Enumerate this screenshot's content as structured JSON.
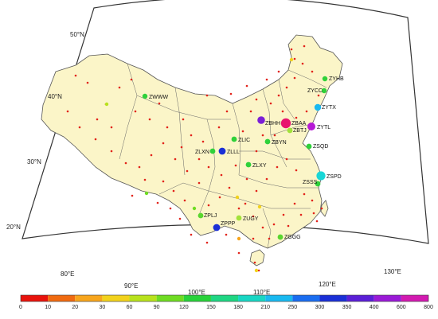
{
  "colors": {
    "land": "#fbf5c8",
    "border": "#555555",
    "frame": "#333333",
    "small_dot": "#e2231a"
  },
  "latitude_labels": [
    "50°N",
    "40°N",
    "30°N",
    "20°N"
  ],
  "longitude_labels": [
    "80°E",
    "90°E",
    "100°E",
    "110°E",
    "120°E",
    "130°E"
  ],
  "stations": [
    {
      "code": "ZWWW",
      "color": "#2fd13a"
    },
    {
      "code": "ZYHB",
      "color": "#2fd13a"
    },
    {
      "code": "ZYCC",
      "color": "#2fd13a"
    },
    {
      "code": "ZYTX",
      "color": "#19b9f0"
    },
    {
      "code": "ZBHH",
      "color": "#7b1fd6"
    },
    {
      "code": "ZBAA",
      "color": "#e8156e"
    },
    {
      "code": "ZBTJ",
      "color": "#a2e23a"
    },
    {
      "code": "ZYTL",
      "color": "#b51ad6"
    },
    {
      "code": "ZLIC",
      "color": "#2fd13a"
    },
    {
      "code": "ZBYN",
      "color": "#2fd13a"
    },
    {
      "code": "ZSQD",
      "color": "#2fd13a"
    },
    {
      "code": "ZLXN",
      "color": "#2fd13a"
    },
    {
      "code": "ZLLL",
      "color": "#1a2fd6"
    },
    {
      "code": "ZLXY",
      "color": "#2fd13a"
    },
    {
      "code": "ZSPD",
      "color": "#19d6d6"
    },
    {
      "code": "ZSSS",
      "color": "#2fd13a"
    },
    {
      "code": "ZPLJ",
      "color": "#5ad62f"
    },
    {
      "code": "ZUGY",
      "color": "#a2e23a"
    },
    {
      "code": "ZPPP",
      "color": "#1a2fd6"
    },
    {
      "code": "ZGGG",
      "color": "#5ad62f"
    }
  ],
  "colorbar": {
    "ticks": [
      "0",
      "10",
      "20",
      "30",
      "60",
      "90",
      "120",
      "150",
      "180",
      "210",
      "250",
      "300",
      "350",
      "400",
      "600",
      "800"
    ],
    "colors": [
      "#e8130c",
      "#f06a10",
      "#f7a51c",
      "#f2d21c",
      "#b8e21c",
      "#6fdc22",
      "#28d23a",
      "#1fd683",
      "#18d6c3",
      "#19b9f0",
      "#1a6df0",
      "#1a2fd6",
      "#5a1fd6",
      "#9a1ad6",
      "#d21ab0",
      "#e8156e"
    ]
  }
}
